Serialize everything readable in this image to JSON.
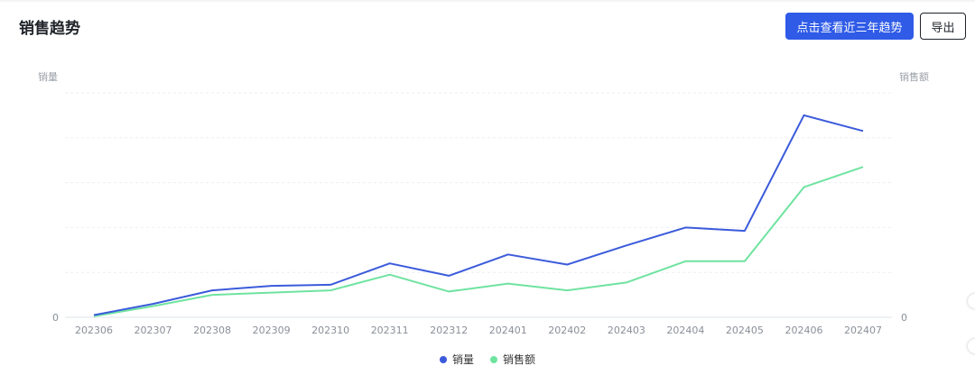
{
  "header": {
    "title": "销售趋势",
    "primary_button": "点击查看近三年趋势",
    "export_button": "导出"
  },
  "colors": {
    "primary": "#2f5be7",
    "series_volume": "#3b5bdb",
    "series_amount": "#6fe3a0"
  },
  "chart_data": {
    "type": "line",
    "x": [
      "202306",
      "202307",
      "202308",
      "202309",
      "202310",
      "202311",
      "202312",
      "202401",
      "202402",
      "202403",
      "202404",
      "202405",
      "202406",
      "202407"
    ],
    "ylabel_left": "销量",
    "ylabel_right": "销售额",
    "left_axis_zero_label": "0",
    "right_axis_zero_label": "0",
    "ylim": [
      0,
      100
    ],
    "grid": true,
    "legend_position": "bottom-center",
    "series": [
      {
        "name": "销量",
        "axis": "left",
        "color": "#3b5bdb",
        "values": [
          1,
          6,
          12,
          14,
          14.5,
          24,
          18.5,
          28,
          23.5,
          32,
          40,
          38.5,
          90,
          83
        ]
      },
      {
        "name": "销售额",
        "axis": "right",
        "color": "#6fe3a0",
        "values": [
          0.5,
          5,
          10,
          11,
          12,
          19,
          11.5,
          15,
          12,
          15.5,
          25,
          25,
          58,
          67
        ]
      }
    ]
  }
}
